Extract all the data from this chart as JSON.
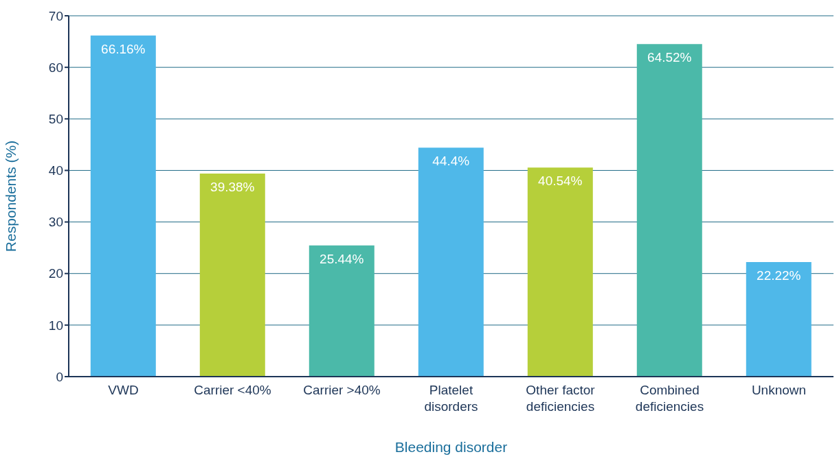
{
  "chart_data": {
    "type": "bar",
    "xlabel": "Bleeding disorder",
    "ylabel": "Respondents (%)",
    "categories": [
      "VWD",
      "Carrier <40%",
      "Carrier >40%",
      "Platelet disorders",
      "Other factor deficiencies",
      "Combined deficiencies",
      "Unknown"
    ],
    "values": [
      66.16,
      39.38,
      25.44,
      44.4,
      40.54,
      64.52,
      22.22
    ],
    "colors": [
      "#4fb8e9",
      "#b6cf3a",
      "#4bb9a9",
      "#4fb8e9",
      "#b6cf3a",
      "#4bb9a9",
      "#4fb8e9"
    ],
    "value_labels": [
      "66.16%",
      "39.38%",
      "25.44%",
      "44.4%",
      "40.54%",
      "64.52%",
      "22.22%"
    ],
    "ylim": [
      0,
      70
    ],
    "yticks": [
      0,
      10,
      20,
      30,
      40,
      50,
      60,
      70
    ],
    "grid": "y",
    "legend": false
  }
}
